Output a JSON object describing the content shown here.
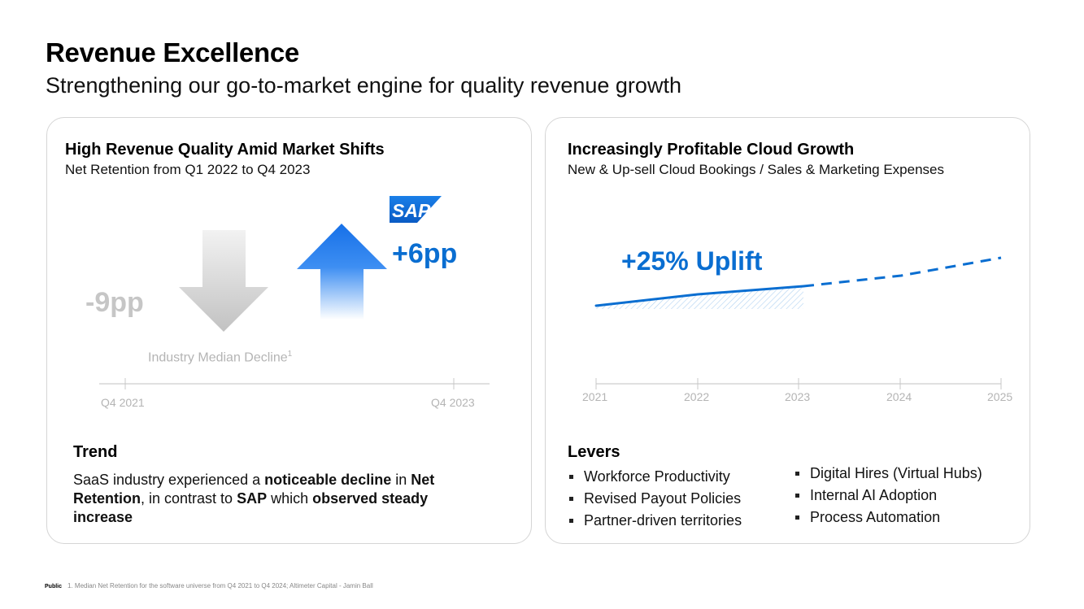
{
  "header": {
    "title": "Revenue Excellence",
    "subtitle": "Strengthening our go-to-market engine for quality revenue growth"
  },
  "left_panel": {
    "title": "High Revenue Quality Amid Market Shifts",
    "subtitle": "Net Retention from Q1 2022 to Q4 2023",
    "industry_change": "-9pp",
    "sap_change": "+6pp",
    "logo_text": "SAP",
    "industry_label": "Industry Median Decline",
    "footnote_marker": "1",
    "axis_start": "Q4 2021",
    "axis_end": "Q4 2023",
    "trend": {
      "heading": "Trend",
      "t1": "SaaS industry experienced a ",
      "b1": "noticeable decline",
      "t2": " in ",
      "b2": "Net Retention",
      "t3": ", in contrast to ",
      "b3": "SAP",
      "t4": " which ",
      "b4": "observed steady increase"
    }
  },
  "right_panel": {
    "title": "Increasingly Profitable Cloud Growth",
    "subtitle": "New & Up-sell Cloud Bookings / Sales & Marketing Expenses",
    "annotation": "+25% Uplift",
    "years": [
      "2021",
      "2022",
      "2023",
      "2024",
      "2025"
    ],
    "levers": {
      "heading": "Levers",
      "column1": [
        "Workforce Productivity",
        "Revised Payout Policies",
        "Partner-driven territories"
      ],
      "column2": [
        "Digital Hires (Virtual Hubs)",
        "Internal AI Adoption",
        "Process Automation"
      ]
    }
  },
  "colors": {
    "sap_blue": "#0a6ed1",
    "industry_grey": "#c6c6c6"
  },
  "footer": {
    "classification": "Public",
    "note": "1. Median Net Retention for the software universe from Q4 2021 to Q4 2024; Altimeter Capital - Jamin Ball"
  }
}
